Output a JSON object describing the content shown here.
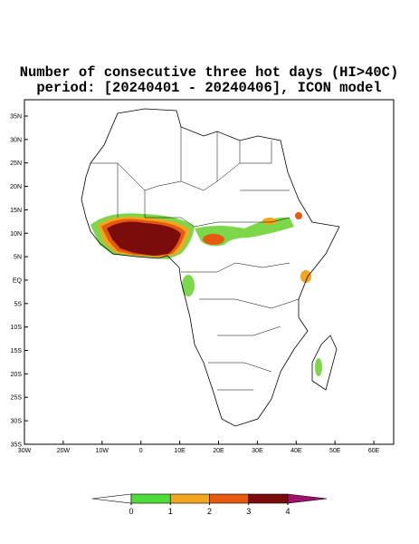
{
  "title": [
    "Number of consecutive three hot days (HI>40C)",
    "period: [20240401 - 20240406], ICON model"
  ],
  "lat_labels": [
    "35N",
    "30N",
    "25N",
    "20N",
    "15N",
    "10N",
    "5N",
    "EQ",
    "5S",
    "10S",
    "15S",
    "20S",
    "25S",
    "30S",
    "35S"
  ],
  "lon_labels": [
    "30W",
    "20W",
    "10W",
    "0",
    "10E",
    "20E",
    "30E",
    "40E",
    "50E",
    "60E"
  ],
  "colorbar": {
    "ticks": [
      0,
      1,
      2,
      3,
      4
    ],
    "colors": [
      "#ffffff",
      "#4ddc3a",
      "#f3a51d",
      "#e55a10",
      "#7b0c0c",
      "#a0106a"
    ]
  }
}
